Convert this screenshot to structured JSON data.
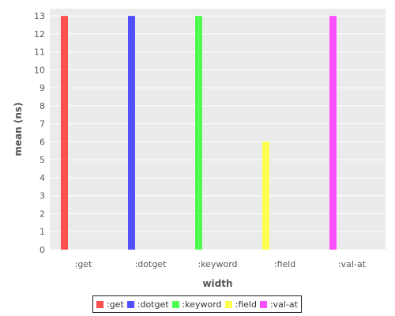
{
  "chart_data": {
    "type": "bar",
    "title": "",
    "xlabel": "width",
    "ylabel": "mean (ns)",
    "categories": [
      ":get",
      ":dotget",
      ":keyword",
      ":field",
      ":val-at"
    ],
    "series": [
      {
        "name": ":get",
        "color": "#ff5050",
        "values": [
          13,
          null,
          null,
          null,
          null
        ]
      },
      {
        "name": ":dotget",
        "color": "#5050ff",
        "values": [
          null,
          13,
          null,
          null,
          null
        ]
      },
      {
        "name": ":keyword",
        "color": "#50ff50",
        "values": [
          null,
          null,
          13,
          null,
          null
        ]
      },
      {
        "name": ":field",
        "color": "#ffff50",
        "values": [
          null,
          null,
          null,
          6,
          null
        ]
      },
      {
        "name": ":val-at",
        "color": "#ff50ff",
        "values": [
          null,
          null,
          null,
          null,
          13
        ]
      }
    ],
    "yticks": [
      "0",
      "1",
      "2",
      "3",
      "4",
      "5",
      "6",
      "7",
      "8",
      "9",
      "10",
      "11",
      "12",
      "13"
    ],
    "ylim": [
      0,
      13.4
    ],
    "grid": true,
    "background": "#ebebeb",
    "legend_position": "bottom"
  }
}
